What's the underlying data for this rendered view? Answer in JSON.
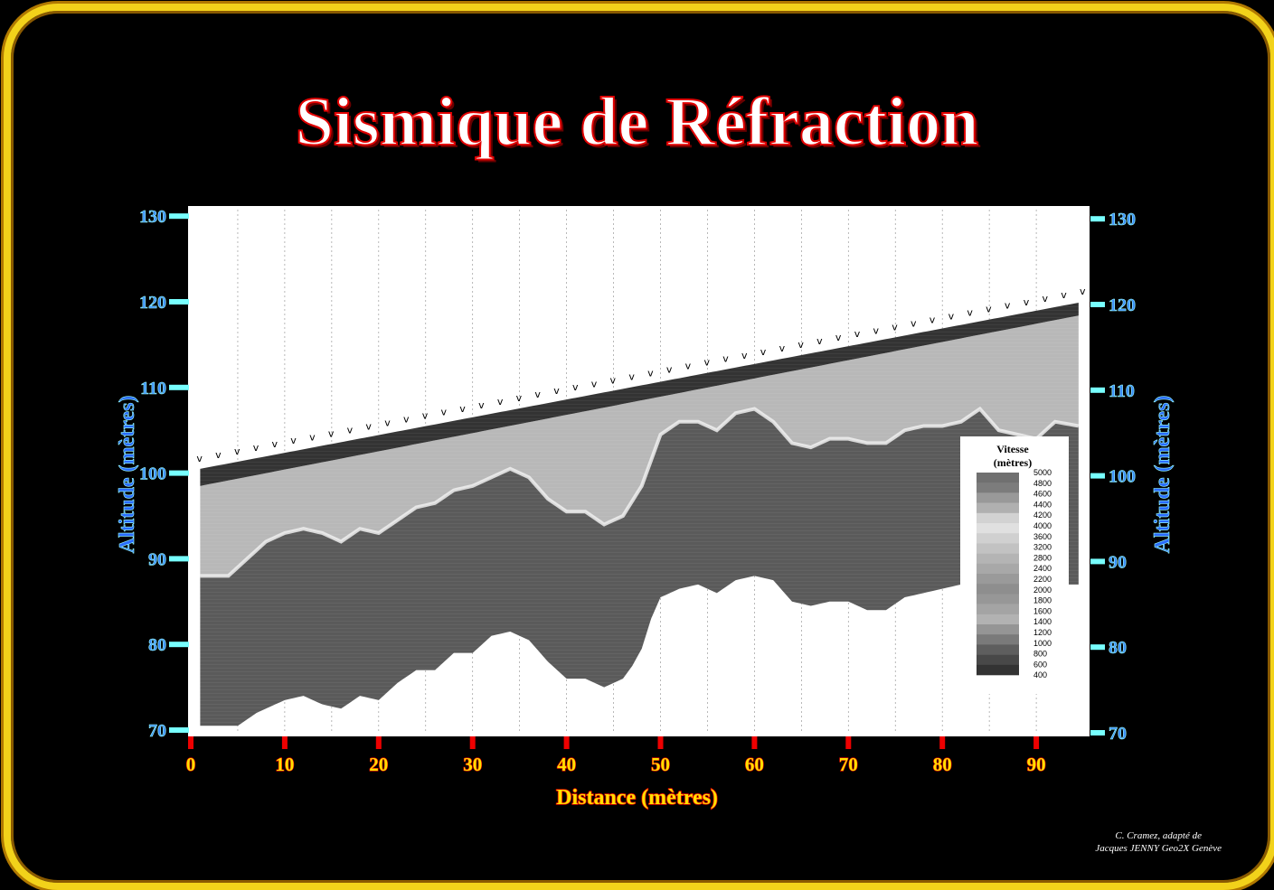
{
  "title": "Sismique de Réfraction",
  "credit": [
    "C. Cramez, adapté de",
    "Jacques JENNY Geo2X Genève"
  ],
  "chart_data": {
    "type": "area",
    "xlabel": "Distance (mètres)",
    "ylabel": "Altitude (mètres)",
    "xlim": [
      0,
      95
    ],
    "ylim": [
      70,
      130
    ],
    "xticks": [
      0,
      10,
      20,
      30,
      40,
      50,
      60,
      70,
      80,
      90
    ],
    "yticks": [
      70,
      80,
      90,
      100,
      110,
      120,
      130
    ],
    "grid": "vertical dashed every 5 m",
    "colors": {
      "frame": "#f2d21a",
      "title_outline": "#e00000",
      "y_ticks": "#3b8cff",
      "x_ticks": "#ffe000",
      "top_layer": "#333333",
      "middle_layer": "#b8b8b8",
      "refractor": "#5a5a5a"
    },
    "surface": {
      "x": [
        1,
        95
      ],
      "y": [
        100.5,
        120
      ]
    },
    "top_layer_base": {
      "x": [
        1,
        95
      ],
      "y": [
        98.5,
        118.5
      ]
    },
    "refractor_interface": {
      "x": [
        1,
        4,
        6,
        8,
        10,
        12,
        14,
        16,
        18,
        20,
        22,
        24,
        26,
        28,
        30,
        32,
        34,
        36,
        38,
        40,
        42,
        44,
        46,
        48,
        50,
        52,
        54,
        56,
        58,
        60,
        62,
        64,
        66,
        68,
        70,
        72,
        74,
        76,
        78,
        80,
        82,
        84,
        86,
        88,
        90,
        92,
        94.5
      ],
      "y": [
        88,
        88,
        90,
        92,
        93,
        93.5,
        93,
        92,
        93.5,
        93,
        94.5,
        96,
        96.5,
        98,
        98.5,
        99.5,
        100.5,
        99.5,
        97,
        95.5,
        95.5,
        94,
        95,
        98.5,
        104.5,
        106,
        106,
        105,
        107,
        107.5,
        106,
        103.5,
        103,
        104,
        104,
        103.5,
        103.5,
        105,
        105.5,
        105.5,
        106,
        107.5,
        105,
        104.5,
        104,
        106,
        105.5
      ]
    },
    "investigation_depth": {
      "x": [
        1,
        5,
        7,
        10,
        12,
        14,
        16,
        18,
        20,
        22,
        24,
        26,
        28,
        30,
        32,
        34,
        36,
        38,
        40,
        42,
        44,
        46,
        47,
        48,
        49,
        50,
        52,
        54,
        56,
        58,
        60,
        62,
        64,
        66,
        68,
        70,
        72,
        74,
        76,
        78,
        80,
        82,
        86,
        90,
        93,
        94.5
      ],
      "y": [
        70.5,
        70.5,
        72,
        73.5,
        74,
        73,
        72.5,
        74,
        73.5,
        75.5,
        77,
        77,
        79,
        79,
        81,
        81.5,
        80.5,
        78,
        76,
        76,
        75,
        76,
        77.5,
        79.5,
        83,
        85.5,
        86.5,
        87,
        86,
        87.5,
        88,
        87.5,
        85,
        84.5,
        85,
        85,
        84,
        84,
        85.5,
        86,
        86.5,
        87,
        87,
        87,
        87,
        87
      ]
    },
    "legend": {
      "title": [
        "Vitesse",
        "(mètres)"
      ],
      "values": [
        5000,
        4800,
        4600,
        4400,
        4200,
        4000,
        3600,
        3200,
        2800,
        2400,
        2200,
        2000,
        1800,
        1600,
        1400,
        1200,
        1000,
        800,
        600,
        400
      ],
      "grays": [
        "#707070",
        "#7c7c7c",
        "#999",
        "#b0b0b0",
        "#d2d2d2",
        "#e0e0e0",
        "#d0d0d0",
        "#c2c2c2",
        "#b4b4b4",
        "#a8a8a8",
        "#9a9a9a",
        "#8e8e8e",
        "#979797",
        "#a4a4a4",
        "#b2b2b2",
        "#959595",
        "#7a7a7a",
        "#5e5e5e",
        "#484848",
        "#333"
      ],
      "placement": "right"
    }
  }
}
